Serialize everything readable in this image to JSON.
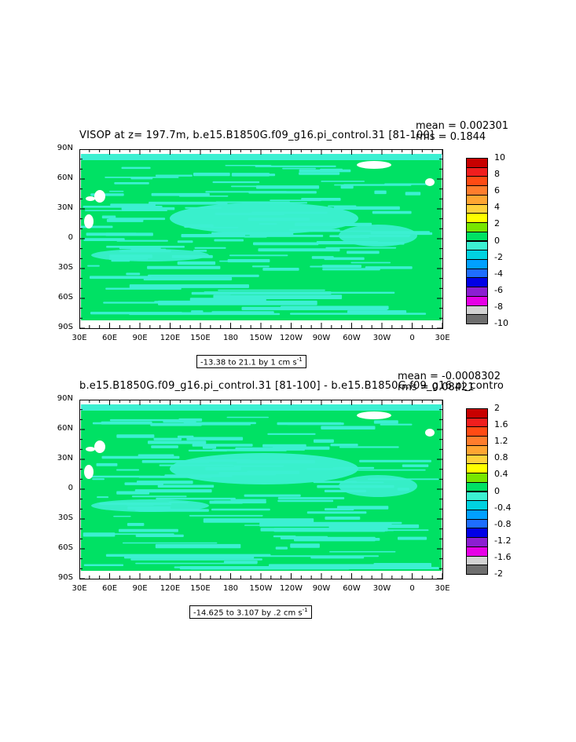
{
  "chart_data": [
    {
      "type": "heatmap",
      "title": "VISOP at z= 197.7m, b.e15.B1850G.f09_g16.pi_control.31 [81-100]",
      "stats": {
        "mean": "mean = 0.002301",
        "rms": "rms = 0.1844"
      },
      "range_label": "-13.38 to 21.1 by 1 cm s",
      "range_superscript": "-1",
      "x_ticks": [
        "30E",
        "60E",
        "90E",
        "120E",
        "150E",
        "180",
        "150W",
        "120W",
        "90W",
        "60W",
        "30W",
        "0",
        "30E"
      ],
      "y_ticks": [
        "90N",
        "60N",
        "30N",
        "0",
        "30S",
        "60S",
        "90S"
      ],
      "colorbar_labels": [
        "10",
        "8",
        "6",
        "4",
        "2",
        "0",
        "-2",
        "-4",
        "-6",
        "-8",
        "-10"
      ],
      "colorbar_colors": [
        "#c80000",
        "#f01e1e",
        "#ff4b14",
        "#ff7d2d",
        "#ffa532",
        "#ffd23c",
        "#ffff00",
        "#78e600",
        "#00e164",
        "#3cf0d2",
        "#00d2e1",
        "#00a0ff",
        "#1e6eff",
        "#0000e6",
        "#8c1ed2",
        "#e600e6",
        "#d2d2d2",
        "#6e6e6e"
      ],
      "dominant_colors": {
        "positive_small": "#00e164",
        "negative_small": "#3cf0d2",
        "land": "#ffffff"
      }
    },
    {
      "type": "heatmap",
      "title": "b.e15.B1850G.f09_g16.pi_control.31 [81-100] - b.e15.B1850G.f09_g16.pi_contro",
      "stats": {
        "mean": "mean = -0.0008302",
        "rms": "rms = 0.08421"
      },
      "range_label": "-14.625 to 3.107 by .2 cm s",
      "range_superscript": "-1",
      "x_ticks": [
        "30E",
        "60E",
        "90E",
        "120E",
        "150E",
        "180",
        "150W",
        "120W",
        "90W",
        "60W",
        "30W",
        "0",
        "30E"
      ],
      "y_ticks": [
        "90N",
        "60N",
        "30N",
        "0",
        "30S",
        "60S",
        "90S"
      ],
      "colorbar_labels": [
        "2",
        "1.6",
        "1.2",
        "0.8",
        "0.4",
        "0",
        "-0.4",
        "-0.8",
        "-1.2",
        "-1.6",
        "-2"
      ],
      "colorbar_colors": [
        "#c80000",
        "#f01e1e",
        "#ff4b14",
        "#ff7d2d",
        "#ffa532",
        "#ffd23c",
        "#ffff00",
        "#78e600",
        "#00e164",
        "#3cf0d2",
        "#00d2e1",
        "#00a0ff",
        "#1e6eff",
        "#0000e6",
        "#8c1ed2",
        "#e600e6",
        "#d2d2d2",
        "#6e6e6e"
      ],
      "dominant_colors": {
        "positive_small": "#00e164",
        "negative_small": "#3cf0d2",
        "land": "#ffffff"
      }
    }
  ]
}
